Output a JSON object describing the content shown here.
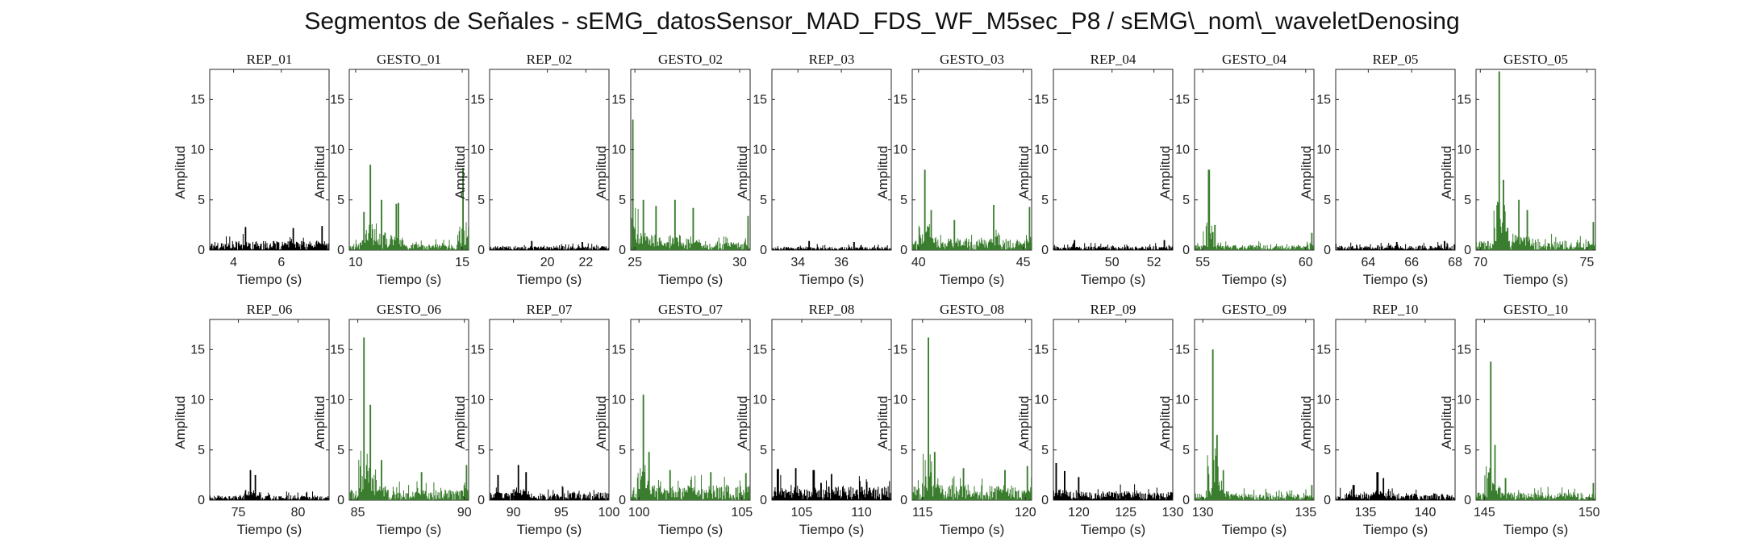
{
  "title": "Segmentos de Señales - sEMG_datosSensor_MAD_FDS_WF_M5sec_P8 / sEMG\\_nom\\_waveletDenosing",
  "colors": {
    "rep": "#000000",
    "gesto": "#3a7d2e",
    "axis": "#262626"
  },
  "chart_data": [
    {
      "type": "line",
      "title": "REP_01",
      "xlabel": "Tiempo (s)",
      "ylabel": "Amplitud",
      "xlim": [
        3,
        8
      ],
      "ylim": [
        0,
        18
      ],
      "xticks": [
        4,
        6
      ],
      "yticks": [
        0,
        5,
        10,
        15
      ],
      "color": "rep",
      "peaks": [
        [
          4.5,
          2.3
        ],
        [
          6.5,
          2.2
        ],
        [
          7.7,
          2.4
        ]
      ],
      "base": 0.9
    },
    {
      "type": "line",
      "title": "GESTO_01",
      "xlabel": "Tiempo (s)",
      "ylabel": "Amplitud",
      "xlim": [
        9.7,
        15.3
      ],
      "ylim": [
        0,
        18
      ],
      "xticks": [
        10,
        15
      ],
      "yticks": [
        0,
        5,
        10,
        15
      ],
      "color": "gesto",
      "peaks": [
        [
          10.4,
          3.8
        ],
        [
          10.7,
          8.5
        ],
        [
          11.2,
          5
        ],
        [
          11.9,
          4.6
        ],
        [
          12.0,
          4.7
        ],
        [
          15.05,
          8.2
        ]
      ],
      "base": 0.6
    },
    {
      "type": "line",
      "title": "REP_02",
      "xlabel": "Tiempo (s)",
      "ylabel": "Amplitud",
      "xlim": [
        17,
        23.2
      ],
      "ylim": [
        0,
        18
      ],
      "xticks": [
        20,
        22
      ],
      "yticks": [
        0,
        5,
        10,
        15
      ],
      "color": "rep",
      "peaks": [
        [
          19.2,
          0.9
        ],
        [
          21.8,
          0.8
        ]
      ],
      "base": 0.4
    },
    {
      "type": "line",
      "title": "GESTO_02",
      "xlabel": "Tiempo (s)",
      "ylabel": "Amplitud",
      "xlim": [
        24.8,
        30.5
      ],
      "ylim": [
        0,
        18
      ],
      "xticks": [
        25,
        30
      ],
      "yticks": [
        0,
        5,
        10,
        15
      ],
      "color": "gesto",
      "peaks": [
        [
          24.9,
          13
        ],
        [
          25.4,
          5
        ],
        [
          26.0,
          4.4
        ],
        [
          26.9,
          5
        ],
        [
          27.8,
          4.2
        ],
        [
          30.4,
          3.4
        ]
      ],
      "base": 0.8
    },
    {
      "type": "line",
      "title": "REP_03",
      "xlabel": "Tiempo (s)",
      "ylabel": "Amplitud",
      "xlim": [
        32.8,
        38.3
      ],
      "ylim": [
        0,
        18
      ],
      "xticks": [
        34,
        36
      ],
      "yticks": [
        0,
        5,
        10,
        15
      ],
      "color": "rep",
      "peaks": [
        [
          34.5,
          0.9
        ],
        [
          36.6,
          0.8
        ]
      ],
      "base": 0.35
    },
    {
      "type": "line",
      "title": "GESTO_03",
      "xlabel": "Tiempo (s)",
      "ylabel": "Amplitud",
      "xlim": [
        39.7,
        45.4
      ],
      "ylim": [
        0,
        18
      ],
      "xticks": [
        40,
        45
      ],
      "yticks": [
        0,
        5,
        10,
        15
      ],
      "color": "gesto",
      "peaks": [
        [
          40.3,
          8
        ],
        [
          40.6,
          4
        ],
        [
          41.7,
          3
        ],
        [
          43.6,
          4.5
        ],
        [
          45.3,
          4.3
        ]
      ],
      "base": 1.2
    },
    {
      "type": "line",
      "title": "REP_04",
      "xlabel": "Tiempo (s)",
      "ylabel": "Amplitud",
      "xlim": [
        47.2,
        52.9
      ],
      "ylim": [
        0,
        18
      ],
      "xticks": [
        50,
        52
      ],
      "yticks": [
        0,
        5,
        10,
        15
      ],
      "color": "rep",
      "peaks": [
        [
          48.2,
          1.0
        ],
        [
          52.5,
          1.0
        ]
      ],
      "base": 0.4
    },
    {
      "type": "line",
      "title": "GESTO_04",
      "xlabel": "Tiempo (s)",
      "ylabel": "Amplitud",
      "xlim": [
        54.6,
        60.4
      ],
      "ylim": [
        0,
        18
      ],
      "xticks": [
        55,
        60
      ],
      "yticks": [
        0,
        5,
        10,
        15
      ],
      "color": "gesto",
      "peaks": [
        [
          55.3,
          8
        ],
        [
          55.6,
          2.5
        ],
        [
          60.3,
          1.7
        ]
      ],
      "base": 0.5
    },
    {
      "type": "line",
      "title": "REP_05",
      "xlabel": "Tiempo (s)",
      "ylabel": "Amplitud",
      "xlim": [
        62.5,
        68
      ],
      "ylim": [
        0,
        18
      ],
      "xticks": [
        64,
        66,
        68
      ],
      "yticks": [
        0,
        5,
        10,
        15
      ],
      "color": "rep",
      "peaks": [
        [
          65.3,
          0.8
        ],
        [
          67.5,
          0.9
        ]
      ],
      "base": 0.45
    },
    {
      "type": "line",
      "title": "GESTO_05",
      "xlabel": "Tiempo (s)",
      "ylabel": "Amplitud",
      "xlim": [
        69.8,
        75.4
      ],
      "ylim": [
        0,
        18
      ],
      "xticks": [
        70,
        75
      ],
      "yticks": [
        0,
        5,
        10,
        15
      ],
      "color": "gesto",
      "peaks": [
        [
          70.9,
          17.8
        ],
        [
          71.1,
          7
        ],
        [
          71.8,
          5
        ],
        [
          72.2,
          4
        ],
        [
          75.3,
          2.8
        ]
      ],
      "base": 0.9
    },
    {
      "type": "line",
      "title": "REP_06",
      "xlabel": "Tiempo (s)",
      "ylabel": "Amplitud",
      "xlim": [
        72.6,
        82.6
      ],
      "ylim": [
        0,
        18
      ],
      "xticks": [
        75,
        80
      ],
      "yticks": [
        0,
        5,
        10,
        15
      ],
      "color": "rep",
      "peaks": [
        [
          76.0,
          3.0
        ],
        [
          76.4,
          2.5
        ]
      ],
      "base": 0.5
    },
    {
      "type": "line",
      "title": "GESTO_06",
      "xlabel": "Tiempo (s)",
      "ylabel": "Amplitud",
      "xlim": [
        84.6,
        90.2
      ],
      "ylim": [
        0,
        18
      ],
      "xticks": [
        85,
        90
      ],
      "yticks": [
        0,
        5,
        10,
        15
      ],
      "color": "gesto",
      "peaks": [
        [
          85.3,
          16.2
        ],
        [
          85.6,
          9.5
        ],
        [
          86.1,
          4
        ],
        [
          88.0,
          2.8
        ],
        [
          90.1,
          3.5
        ]
      ],
      "base": 1.1
    },
    {
      "type": "line",
      "title": "REP_07",
      "xlabel": "Tiempo (s)",
      "ylabel": "Amplitud",
      "xlim": [
        87.5,
        100
      ],
      "ylim": [
        0,
        18
      ],
      "xticks": [
        90,
        95,
        100
      ],
      "yticks": [
        0,
        5,
        10,
        15
      ],
      "color": "rep",
      "peaks": [
        [
          88.4,
          2.5
        ],
        [
          90.5,
          3.5
        ],
        [
          91.3,
          2.8
        ]
      ],
      "base": 0.8
    },
    {
      "type": "line",
      "title": "GESTO_07",
      "xlabel": "Tiempo (s)",
      "ylabel": "Amplitud",
      "xlim": [
        99.6,
        105.4
      ],
      "ylim": [
        0,
        18
      ],
      "xticks": [
        100,
        105
      ],
      "yticks": [
        0,
        5,
        10,
        15
      ],
      "color": "gesto",
      "peaks": [
        [
          100.2,
          10.5
        ],
        [
          100.5,
          4.8
        ],
        [
          101.5,
          3.0
        ],
        [
          103.5,
          2.8
        ],
        [
          105.2,
          2.7
        ]
      ],
      "base": 1.5
    },
    {
      "type": "line",
      "title": "REP_08",
      "xlabel": "Tiempo (s)",
      "ylabel": "Amplitud",
      "xlim": [
        102.5,
        112.5
      ],
      "ylim": [
        0,
        18
      ],
      "xticks": [
        105,
        110
      ],
      "yticks": [
        0,
        5,
        10,
        15
      ],
      "color": "rep",
      "peaks": [
        [
          103.0,
          3.1
        ],
        [
          104.5,
          3.2
        ],
        [
          106.0,
          3.0
        ],
        [
          107.5,
          2.6
        ]
      ],
      "base": 1.4
    },
    {
      "type": "line",
      "title": "GESTO_08",
      "xlabel": "Tiempo (s)",
      "ylabel": "Amplitud",
      "xlim": [
        114.5,
        120.3
      ],
      "ylim": [
        0,
        18
      ],
      "xticks": [
        115,
        120
      ],
      "yticks": [
        0,
        5,
        10,
        15
      ],
      "color": "gesto",
      "peaks": [
        [
          115.3,
          16.2
        ],
        [
          115.6,
          4.8
        ],
        [
          117.0,
          3.2
        ],
        [
          119.0,
          3.0
        ],
        [
          120.1,
          3.4
        ]
      ],
      "base": 1.5
    },
    {
      "type": "line",
      "title": "REP_09",
      "xlabel": "Tiempo (s)",
      "ylabel": "Amplitud",
      "xlim": [
        117.3,
        130
      ],
      "ylim": [
        0,
        18
      ],
      "xticks": [
        120,
        125,
        130
      ],
      "yticks": [
        0,
        5,
        10,
        15
      ],
      "color": "rep",
      "peaks": [
        [
          117.6,
          3.7
        ],
        [
          118.5,
          2.9
        ],
        [
          120.0,
          2.3
        ]
      ],
      "base": 0.9
    },
    {
      "type": "line",
      "title": "GESTO_09",
      "xlabel": "Tiempo (s)",
      "ylabel": "Amplitud",
      "xlim": [
        129.6,
        135.4
      ],
      "ylim": [
        0,
        18
      ],
      "xticks": [
        130,
        135
      ],
      "yticks": [
        0,
        5,
        10,
        15
      ],
      "color": "gesto",
      "peaks": [
        [
          130.5,
          15
        ],
        [
          130.7,
          6.5
        ],
        [
          131.0,
          3
        ],
        [
          135.3,
          1.5
        ]
      ],
      "base": 0.7
    },
    {
      "type": "line",
      "title": "REP_10",
      "xlabel": "Tiempo (s)",
      "ylabel": "Amplitud",
      "xlim": [
        132.5,
        142.5
      ],
      "ylim": [
        0,
        18
      ],
      "xticks": [
        135,
        140
      ],
      "yticks": [
        0,
        5,
        10,
        15
      ],
      "color": "rep",
      "peaks": [
        [
          134.0,
          1.5
        ],
        [
          136.0,
          2.8
        ],
        [
          136.5,
          2.2
        ]
      ],
      "base": 0.7
    },
    {
      "type": "line",
      "title": "GESTO_10",
      "xlabel": "Tiempo (s)",
      "ylabel": "Amplitud",
      "xlim": [
        144.6,
        150.3
      ],
      "ylim": [
        0,
        18
      ],
      "xticks": [
        145,
        150
      ],
      "yticks": [
        0,
        5,
        10,
        15
      ],
      "color": "gesto",
      "peaks": [
        [
          145.3,
          13.8
        ],
        [
          145.5,
          5.5
        ],
        [
          146.0,
          2.2
        ],
        [
          150.2,
          1.7
        ]
      ],
      "base": 0.8
    }
  ]
}
